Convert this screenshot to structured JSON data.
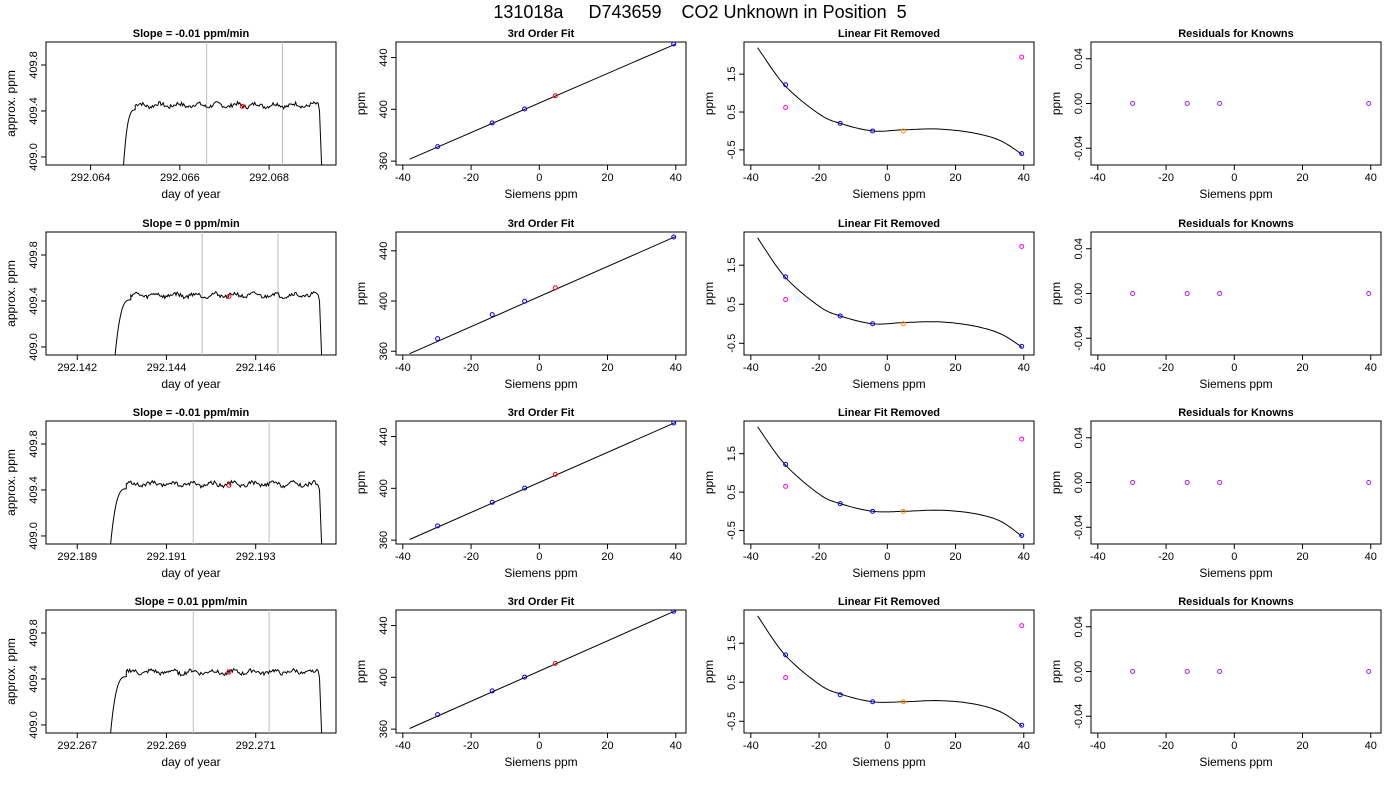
{
  "title": "131018a     D743659    CO2 Unknown in Position  5",
  "colors": {
    "axis": "#000000",
    "trace": "#000000",
    "vline": "#bebebe",
    "known": "#0000ff",
    "unknown": "#ff0000",
    "unknown_linear": "#ff8c00",
    "residual": "#a020f0",
    "removed": "#ff00ff"
  },
  "chart_data": [
    {
      "row": 1,
      "col": 1,
      "type": "line",
      "title": "Slope =  -0.01  ppm/min",
      "xlabel": "day of year",
      "ylabel": "approx. ppm",
      "xlim": [
        292.063,
        292.0695
      ],
      "ylim": [
        408.93,
        410.0
      ],
      "xticks": [
        "292.064",
        "292.066",
        "292.068"
      ],
      "yticks": [
        "409.0",
        "409.4",
        "409.8"
      ],
      "trace": {
        "rise": [
          292.0647,
          292.065
        ],
        "fall": [
          292.0691,
          292.0692
        ],
        "plateau": 409.45,
        "base": 408.7
      },
      "vlines": [
        292.0666,
        292.0683
      ],
      "marker": {
        "x": 292.0674,
        "y": 409.44
      }
    },
    {
      "row": 1,
      "col": 2,
      "type": "scatter",
      "title": "3rd Order Fit",
      "xlabel": "Siemens ppm",
      "ylabel": "ppm",
      "xlim": [
        -42,
        43
      ],
      "ylim": [
        357,
        452
      ],
      "xticks": [
        "-40",
        "-20",
        "0",
        "20",
        "40"
      ],
      "yticks": [
        "360",
        "400",
        "440"
      ],
      "curve": {
        "x": [
          -38,
          40
        ],
        "y": [
          361.5,
          450.5
        ]
      },
      "knowns": {
        "x": [
          -29.8,
          -13.8,
          -4.3,
          39.4
        ],
        "y": [
          371.2,
          389.5,
          400.3,
          450.5
        ]
      },
      "unknown": {
        "x": 4.7,
        "y": 410.5
      }
    },
    {
      "row": 1,
      "col": 3,
      "type": "scatter",
      "title": "Linear Fit Removed",
      "xlabel": "Siemens ppm",
      "ylabel": "ppm",
      "xlim": [
        -42,
        43
      ],
      "ylim": [
        -0.9,
        2.35
      ],
      "xticks": [
        "-40",
        "-20",
        "0",
        "20",
        "40"
      ],
      "yticks": [
        "-0.5",
        "0.5",
        "1.5"
      ],
      "curve": {
        "x": [
          -38,
          -30,
          -20,
          -13.8,
          -4.3,
          4.7,
          15,
          25,
          33,
          39.5
        ],
        "y": [
          2.2,
          1.2,
          0.45,
          0.2,
          0.0,
          0.03,
          0.05,
          -0.05,
          -0.25,
          -0.62
        ]
      },
      "knowns": {
        "x": [
          -29.8,
          -13.8,
          -4.3,
          39.4
        ],
        "y": [
          1.22,
          0.2,
          0.0,
          -0.6
        ]
      },
      "removed": {
        "x": [
          -29.8,
          39.4
        ],
        "y": [
          0.62,
          1.95
        ]
      },
      "unknown": {
        "x": 4.7,
        "y": 0.0
      }
    },
    {
      "row": 1,
      "col": 4,
      "type": "scatter",
      "title": "Residuals for Knowns",
      "xlabel": "Siemens ppm",
      "ylabel": "ppm",
      "xlim": [
        -42,
        43
      ],
      "ylim": [
        -0.055,
        0.055
      ],
      "xticks": [
        "-40",
        "-20",
        "0",
        "20",
        "40"
      ],
      "yticks": [
        "-0.04",
        "0.00",
        "0.04"
      ],
      "points": {
        "x": [
          -29.8,
          -13.8,
          -4.3,
          39.4
        ],
        "y": [
          0,
          0,
          0,
          0
        ]
      }
    },
    {
      "row": 2,
      "col": 1,
      "type": "line",
      "title": "Slope =  0  ppm/min",
      "xlabel": "day of year",
      "ylabel": "approx. ppm",
      "xlim": [
        292.1413,
        292.1478
      ],
      "ylim": [
        408.93,
        410.0
      ],
      "xticks": [
        "292.142",
        "292.144",
        "292.146"
      ],
      "yticks": [
        "409.0",
        "409.4",
        "409.8"
      ],
      "trace": {
        "rise": [
          292.1428,
          292.1432
        ],
        "fall": [
          292.1474,
          292.1475
        ],
        "plateau": 409.45,
        "base": 408.7
      },
      "vlines": [
        292.1448,
        292.1465
      ],
      "marker": {
        "x": 292.1454,
        "y": 409.44
      }
    },
    {
      "row": 2,
      "col": 2,
      "type": "scatter",
      "title": "3rd Order Fit",
      "xlabel": "Siemens ppm",
      "ylabel": "ppm",
      "xlim": [
        -42,
        43
      ],
      "ylim": [
        357,
        455
      ],
      "xticks": [
        "-40",
        "-20",
        "0",
        "20",
        "40"
      ],
      "yticks": [
        "360",
        "400",
        "440"
      ],
      "curve": {
        "x": [
          -38,
          40
        ],
        "y": [
          358,
          451.5
        ]
      },
      "knowns": {
        "x": [
          -29.8,
          -13.8,
          -4.3,
          39.4
        ],
        "y": [
          370.0,
          389.2,
          399.8,
          451.0
        ]
      },
      "unknown": {
        "x": 4.7,
        "y": 410.6
      }
    },
    {
      "row": 2,
      "col": 3,
      "type": "scatter",
      "title": "Linear Fit Removed",
      "xlabel": "Siemens ppm",
      "ylabel": "ppm",
      "xlim": [
        -42,
        43
      ],
      "ylim": [
        -0.8,
        2.35
      ],
      "xticks": [
        "-40",
        "-20",
        "0",
        "20",
        "40"
      ],
      "yticks": [
        "-0.5",
        "0.5",
        "1.5"
      ],
      "curve": {
        "x": [
          -38,
          -30,
          -20,
          -13.8,
          -4.3,
          4.7,
          15,
          25,
          33,
          39.5
        ],
        "y": [
          2.2,
          1.2,
          0.45,
          0.2,
          0.0,
          0.03,
          0.05,
          -0.05,
          -0.25,
          -0.6
        ]
      },
      "knowns": {
        "x": [
          -29.8,
          -13.8,
          -4.3,
          39.4
        ],
        "y": [
          1.2,
          0.2,
          0.0,
          -0.58
        ]
      },
      "removed": {
        "x": [
          -29.8,
          39.4
        ],
        "y": [
          0.62,
          1.98
        ]
      },
      "unknown": {
        "x": 4.7,
        "y": 0.0
      }
    },
    {
      "row": 2,
      "col": 4,
      "type": "scatter",
      "title": "Residuals for Knowns",
      "xlabel": "Siemens ppm",
      "ylabel": "ppm",
      "xlim": [
        -42,
        43
      ],
      "ylim": [
        -0.055,
        0.055
      ],
      "xticks": [
        "-40",
        "-20",
        "0",
        "20",
        "40"
      ],
      "yticks": [
        "-0.04",
        "0.00",
        "0.04"
      ],
      "points": {
        "x": [
          -29.8,
          -13.8,
          -4.3,
          39.4
        ],
        "y": [
          0,
          0,
          0,
          0
        ]
      }
    },
    {
      "row": 3,
      "col": 1,
      "type": "line",
      "title": "Slope =  -0.01  ppm/min",
      "xlabel": "day of year",
      "ylabel": "approx. ppm",
      "xlim": [
        292.1883,
        292.1948
      ],
      "ylim": [
        408.93,
        410.0
      ],
      "xticks": [
        "292.189",
        "292.191",
        "292.193"
      ],
      "yticks": [
        "409.0",
        "409.4",
        "409.8"
      ],
      "trace": {
        "rise": [
          292.1897,
          292.1901
        ],
        "fall": [
          292.1944,
          292.1945
        ],
        "plateau": 409.45,
        "base": 408.7
      },
      "vlines": [
        292.1916,
        292.1933
      ],
      "marker": {
        "x": 292.1924,
        "y": 409.44
      }
    },
    {
      "row": 3,
      "col": 2,
      "type": "scatter",
      "title": "3rd Order Fit",
      "xlabel": "Siemens ppm",
      "ylabel": "ppm",
      "xlim": [
        -42,
        43
      ],
      "ylim": [
        357,
        452
      ],
      "xticks": [
        "-40",
        "-20",
        "0",
        "20",
        "40"
      ],
      "yticks": [
        "360",
        "400",
        "440"
      ],
      "curve": {
        "x": [
          -38,
          40
        ],
        "y": [
          360.5,
          451.0
        ]
      },
      "knowns": {
        "x": [
          -29.8,
          -13.8,
          -4.3,
          39.4
        ],
        "y": [
          371.0,
          389.2,
          400.2,
          450.5
        ]
      },
      "unknown": {
        "x": 4.7,
        "y": 410.8
      }
    },
    {
      "row": 3,
      "col": 3,
      "type": "scatter",
      "title": "Linear Fit Removed",
      "xlabel": "Siemens ppm",
      "ylabel": "ppm",
      "xlim": [
        -42,
        43
      ],
      "ylim": [
        -0.85,
        2.35
      ],
      "xticks": [
        "-40",
        "-20",
        "0",
        "20",
        "40"
      ],
      "yticks": [
        "-0.5",
        "0.5",
        "1.5"
      ],
      "curve": {
        "x": [
          -38,
          -30,
          -20,
          -13.8,
          -4.3,
          4.7,
          15,
          25,
          33,
          39.5
        ],
        "y": [
          2.2,
          1.22,
          0.45,
          0.2,
          0.0,
          0.0,
          0.03,
          -0.05,
          -0.25,
          -0.65
        ]
      },
      "knowns": {
        "x": [
          -29.8,
          -13.8,
          -4.3,
          39.4
        ],
        "y": [
          1.22,
          0.2,
          0.0,
          -0.63
        ]
      },
      "removed": {
        "x": [
          -29.8,
          39.4
        ],
        "y": [
          0.65,
          1.88
        ]
      },
      "unknown": {
        "x": 4.7,
        "y": 0.0
      }
    },
    {
      "row": 3,
      "col": 4,
      "type": "scatter",
      "title": "Residuals for Knowns",
      "xlabel": "Siemens ppm",
      "ylabel": "ppm",
      "xlim": [
        -42,
        43
      ],
      "ylim": [
        -0.055,
        0.055
      ],
      "xticks": [
        "-40",
        "-20",
        "0",
        "20",
        "40"
      ],
      "yticks": [
        "-0.04",
        "0.00",
        "0.04"
      ],
      "points": {
        "x": [
          -29.8,
          -13.8,
          -4.3,
          39.4
        ],
        "y": [
          0,
          0,
          0,
          0
        ]
      }
    },
    {
      "row": 4,
      "col": 1,
      "type": "line",
      "title": "Slope =  0.01  ppm/min",
      "xlabel": "day of year",
      "ylabel": "approx. ppm",
      "xlim": [
        292.2663,
        292.2728
      ],
      "ylim": [
        408.93,
        410.0
      ],
      "xticks": [
        "292.267",
        "292.269",
        "292.271"
      ],
      "yticks": [
        "409.0",
        "409.4",
        "409.8"
      ],
      "trace": {
        "rise": [
          292.2677,
          292.2681
        ],
        "fall": [
          292.2724,
          292.2725
        ],
        "plateau": 409.46,
        "base": 408.7
      },
      "vlines": [
        292.2696,
        292.2713
      ],
      "marker": {
        "x": 292.2704,
        "y": 409.46
      }
    },
    {
      "row": 4,
      "col": 2,
      "type": "scatter",
      "title": "3rd Order Fit",
      "xlabel": "Siemens ppm",
      "ylabel": "ppm",
      "xlim": [
        -42,
        43
      ],
      "ylim": [
        357,
        452
      ],
      "xticks": [
        "-40",
        "-20",
        "0",
        "20",
        "40"
      ],
      "yticks": [
        "360",
        "400",
        "440"
      ],
      "curve": {
        "x": [
          -38,
          40
        ],
        "y": [
          360.5,
          451.5
        ]
      },
      "knowns": {
        "x": [
          -29.8,
          -13.8,
          -4.3,
          39.4
        ],
        "y": [
          371.2,
          389.5,
          400.2,
          451.0
        ]
      },
      "unknown": {
        "x": 4.7,
        "y": 410.8
      }
    },
    {
      "row": 4,
      "col": 3,
      "type": "scatter",
      "title": "Linear Fit Removed",
      "xlabel": "Siemens ppm",
      "ylabel": "ppm",
      "xlim": [
        -42,
        43
      ],
      "ylim": [
        -0.8,
        2.35
      ],
      "xticks": [
        "-40",
        "-20",
        "0",
        "20",
        "40"
      ],
      "yticks": [
        "-0.5",
        "0.5",
        "1.5"
      ],
      "curve": {
        "x": [
          -38,
          -30,
          -20,
          -13.8,
          -4.3,
          4.7,
          15,
          25,
          33,
          39.5
        ],
        "y": [
          2.2,
          1.2,
          0.45,
          0.2,
          0.0,
          0.0,
          0.03,
          -0.05,
          -0.25,
          -0.62
        ]
      },
      "knowns": {
        "x": [
          -29.8,
          -13.8,
          -4.3,
          39.4
        ],
        "y": [
          1.2,
          0.18,
          0.0,
          -0.6
        ]
      },
      "removed": {
        "x": [
          -29.8,
          39.4
        ],
        "y": [
          0.62,
          1.95
        ]
      },
      "unknown": {
        "x": 4.7,
        "y": 0.0
      }
    },
    {
      "row": 4,
      "col": 4,
      "type": "scatter",
      "title": "Residuals for Knowns",
      "xlabel": "Siemens ppm",
      "ylabel": "ppm",
      "xlim": [
        -42,
        43
      ],
      "ylim": [
        -0.055,
        0.055
      ],
      "xticks": [
        "-40",
        "-20",
        "0",
        "20",
        "40"
      ],
      "yticks": [
        "-0.04",
        "0.00",
        "0.04"
      ],
      "points": {
        "x": [
          -29.8,
          -13.8,
          -4.3,
          39.4
        ],
        "y": [
          0,
          0,
          0,
          0
        ]
      }
    }
  ]
}
